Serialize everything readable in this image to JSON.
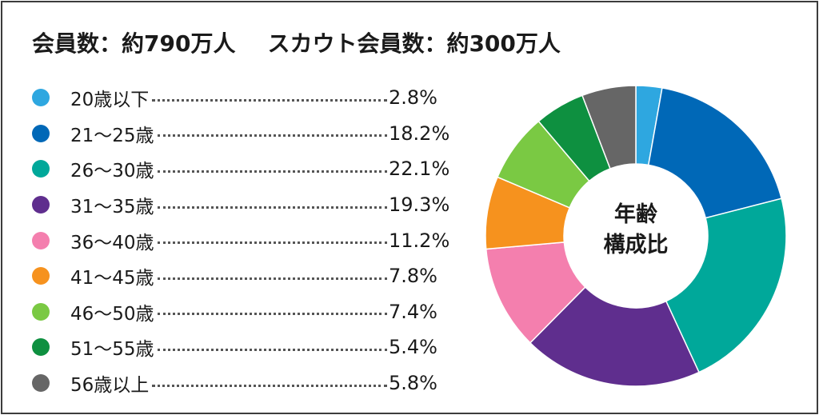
{
  "headline": {
    "members": "会員数：約790万人",
    "scouts": "スカウト会員数：約300万人"
  },
  "center_label": [
    "年齢",
    "構成比"
  ],
  "chart_data": {
    "type": "pie",
    "donut": true,
    "categories": [
      "20歳以下",
      "21～25歳",
      "26～30歳",
      "31～35歳",
      "36～40歳",
      "41～45歳",
      "46～50歳",
      "51～55歳",
      "56歳以上"
    ],
    "values": [
      2.8,
      18.2,
      22.1,
      19.3,
      11.2,
      7.8,
      7.4,
      5.4,
      5.8
    ],
    "value_labels": [
      "2.8%",
      "18.2%",
      "22.1%",
      "19.3%",
      "11.2%",
      "7.8%",
      "7.4%",
      "5.4%",
      "5.8%"
    ],
    "colors": [
      "#2ea7e0",
      "#0068b7",
      "#00a89a",
      "#5f2e8e",
      "#f47fae",
      "#f6921e",
      "#7ac943",
      "#0e9040",
      "#666666"
    ],
    "unit": "%",
    "start_angle": "12 o'clock",
    "direction": "clockwise",
    "legend_position": "left"
  }
}
